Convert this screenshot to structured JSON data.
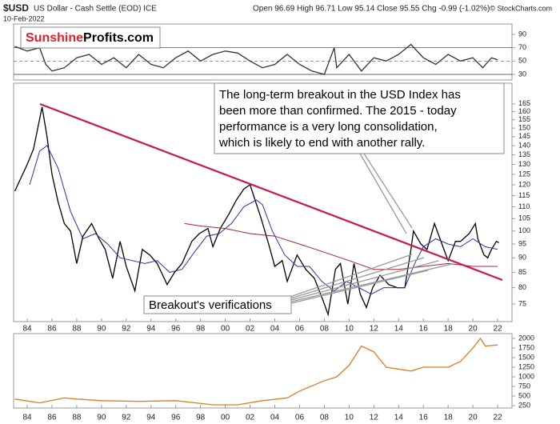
{
  "header": {
    "symbol": "$USD",
    "name": "US Dollar - Cash Settle (EOD) ICE",
    "date": "10-Feb-2022",
    "quote": "Open 96.69  High 96.71  Low 95.14  Close 95.55  Chg -0.99 (-1.02%)",
    "credit": "© StockCharts.com"
  },
  "logo": {
    "part1": "Sunshine",
    "part2": "Profits.com"
  },
  "chart_data": [
    {
      "type": "line",
      "name": "rsi-panel",
      "ylim": [
        21.6,
        105.6
      ],
      "yticks": [
        90,
        70,
        50,
        30
      ],
      "series": [
        {
          "name": "RSI",
          "color": "#333333",
          "x": [
            1983,
            1984,
            1985,
            1985.5,
            1986,
            1987,
            1988,
            1989,
            1990,
            1991,
            1992,
            1993,
            1994,
            1995,
            1996,
            1997,
            1998,
            1999,
            2000,
            2001,
            2002,
            2003,
            2004,
            2005,
            2006,
            2007,
            2008,
            2008.8,
            2009,
            2010,
            2011,
            2012,
            2013,
            2014,
            2015,
            2016,
            2017,
            2018,
            2019,
            2020,
            2020.8,
            2021.5,
            2022
          ],
          "values": [
            72,
            65,
            70,
            45,
            35,
            40,
            55,
            60,
            45,
            55,
            40,
            60,
            45,
            40,
            55,
            65,
            50,
            60,
            65,
            62,
            50,
            40,
            45,
            60,
            45,
            35,
            30,
            70,
            40,
            60,
            35,
            55,
            50,
            60,
            75,
            55,
            45,
            60,
            50,
            55,
            40,
            55,
            52
          ]
        }
      ]
    },
    {
      "type": "line",
      "name": "price-panel",
      "log_scale": true,
      "ylim": [
        70,
        179
      ],
      "yticks": [
        75,
        80,
        85,
        90,
        95,
        100,
        105,
        110,
        115,
        120,
        125,
        130,
        135,
        140,
        145,
        150,
        155,
        160,
        165
      ],
      "xlim": [
        1982.9,
        2023.16
      ],
      "xticks": [
        {
          "value": 1984,
          "label": "84"
        },
        {
          "value": 1986,
          "label": "86"
        },
        {
          "value": 1988,
          "label": "88"
        },
        {
          "value": 1990,
          "label": "90"
        },
        {
          "value": 1992,
          "label": "92"
        },
        {
          "value": 1994,
          "label": "94"
        },
        {
          "value": 1996,
          "label": "96"
        },
        {
          "value": 1998,
          "label": "98"
        },
        {
          "value": 2000,
          "label": "00"
        },
        {
          "value": 2002,
          "label": "02"
        },
        {
          "value": 2004,
          "label": "04"
        },
        {
          "value": 2006,
          "label": "06"
        },
        {
          "value": 2008,
          "label": "08"
        },
        {
          "value": 2010,
          "label": "10"
        },
        {
          "value": 2012,
          "label": "12"
        },
        {
          "value": 2014,
          "label": "14"
        },
        {
          "value": 2016,
          "label": "16"
        },
        {
          "value": 2018,
          "label": "18"
        },
        {
          "value": 2020,
          "label": "20"
        },
        {
          "value": 2022,
          "label": "22"
        }
      ],
      "series": [
        {
          "name": "USD",
          "color": "#000000",
          "x": [
            1983.0,
            1984.0,
            1984.5,
            1985.2,
            1985.6,
            1986.0,
            1986.5,
            1987.0,
            1987.5,
            1988.0,
            1988.5,
            1989.2,
            1989.8,
            1990.3,
            1990.9,
            1991.5,
            1992.0,
            1992.7,
            1993.3,
            1993.9,
            1994.5,
            1995.3,
            1995.9,
            1996.5,
            1997.3,
            1997.9,
            1998.6,
            1999.0,
            1999.6,
            2000.3,
            2000.9,
            2001.5,
            2002.0,
            2002.4,
            2002.9,
            2003.5,
            2004.0,
            2004.6,
            2005.0,
            2005.8,
            2006.5,
            2007.2,
            2007.9,
            2008.3,
            2008.9,
            2009.3,
            2009.9,
            2010.4,
            2010.9,
            2011.4,
            2011.9,
            2012.5,
            2013.2,
            2013.9,
            2014.5,
            2015.0,
            2015.2,
            2015.8,
            2016.3,
            2016.9,
            2017.5,
            2018.0,
            2018.6,
            2019.0,
            2019.7,
            2020.2,
            2020.4,
            2020.9,
            2021.2,
            2021.5,
            2021.9,
            2022.1
          ],
          "values": [
            117,
            130,
            138,
            163,
            145,
            125,
            112,
            103,
            100,
            88,
            98,
            103,
            97,
            93,
            83,
            96,
            87,
            79,
            93,
            91,
            88,
            81,
            85,
            88,
            96,
            99,
            101,
            94,
            101,
            107,
            113,
            118,
            120,
            113,
            105,
            95,
            87,
            89,
            82,
            91,
            86,
            83,
            76,
            72,
            86,
            88,
            75,
            88,
            78,
            74,
            80,
            84,
            81,
            80,
            80,
            93,
            100,
            95,
            93,
            103,
            95,
            89,
            96,
            96,
            99,
            103,
            97,
            91,
            90,
            93,
            96,
            95.5
          ]
        },
        {
          "name": "MA-short",
          "color": "#2633a8",
          "x": [
            1984.2,
            1985.0,
            1985.6,
            1986.5,
            1987.5,
            1988.5,
            1989.5,
            1990.5,
            1991.5,
            1992.5,
            1993.5,
            1994.5,
            1995.5,
            1996.5,
            1997.5,
            1998.5,
            1999.5,
            2000.5,
            2001.5,
            2002.5,
            2003.0,
            2003.8,
            2004.8,
            2005.8,
            2006.8,
            2007.8,
            2008.8,
            2009.8,
            2010.8,
            2011.8,
            2012.8,
            2013.8,
            2014.5,
            2015.3,
            2016.0,
            2017.0,
            2018.0,
            2019.0,
            2020.0,
            2021.0,
            2022.0
          ],
          "values": [
            120,
            137,
            140,
            128,
            108,
            97,
            99,
            95,
            90,
            89,
            88,
            89,
            85,
            86,
            92,
            98,
            99,
            103,
            110,
            113,
            111,
            100,
            91,
            87,
            87,
            82,
            79,
            82,
            80,
            78,
            80,
            80,
            80,
            88,
            94,
            97,
            95,
            94,
            97,
            94,
            93
          ]
        },
        {
          "name": "MA-long",
          "color": "#b0202a",
          "x": [
            1996.7,
            1998,
            2000,
            2002,
            2004,
            2006,
            2008,
            2010,
            2012,
            2014,
            2016,
            2018,
            2020,
            2022
          ],
          "values": [
            103,
            102,
            101,
            99,
            98,
            95,
            92,
            89,
            86,
            86,
            87,
            88,
            87,
            87
          ]
        }
      ],
      "annotation_main": [
        "The long-term breakout in the USD Index has",
        "been more than confirmed. The 2015 - today",
        "performance is a very long consolidation,",
        "which is likely to end with another rally."
      ],
      "annotation_breakout": "Breakout's verifications"
    },
    {
      "type": "line",
      "name": "gold-panel",
      "ylim": [
        187.5,
        2125
      ],
      "yticks": [
        250,
        500,
        750,
        1000,
        1250,
        1500,
        1750,
        2000
      ],
      "series": [
        {
          "name": "Gold",
          "color": "#e07b20",
          "x": [
            1983,
            1985,
            1987,
            1988,
            1990,
            1993,
            1996,
            1999,
            2001,
            2003,
            2005,
            2006,
            2008,
            2009,
            2010,
            2011,
            2012,
            2013,
            2015,
            2016,
            2018,
            2019,
            2020,
            2020.6,
            2021,
            2022
          ],
          "values": [
            420,
            320,
            450,
            420,
            380,
            360,
            380,
            270,
            270,
            380,
            450,
            630,
            900,
            1000,
            1300,
            1800,
            1650,
            1250,
            1150,
            1250,
            1250,
            1400,
            1750,
            2000,
            1800,
            1830
          ]
        }
      ]
    }
  ]
}
